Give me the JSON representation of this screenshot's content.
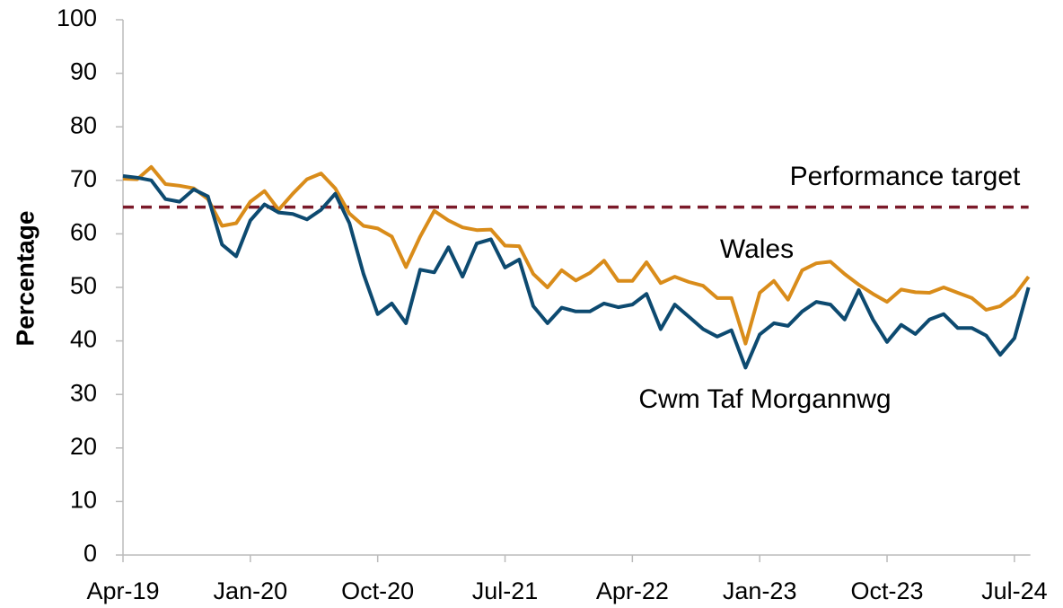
{
  "chart_data": {
    "type": "line",
    "y_label": "Percentage",
    "categories": [
      "Apr-19",
      null,
      null,
      null,
      null,
      null,
      null,
      null,
      null,
      "Jan-20",
      null,
      null,
      null,
      null,
      null,
      null,
      null,
      null,
      "Oct-20",
      null,
      null,
      null,
      null,
      null,
      null,
      null,
      null,
      "Jul-21",
      null,
      null,
      null,
      null,
      null,
      null,
      null,
      null,
      "Apr-22",
      null,
      null,
      null,
      null,
      null,
      null,
      null,
      null,
      "Jan-23",
      null,
      null,
      null,
      null,
      null,
      null,
      null,
      null,
      "Oct-23",
      null,
      null,
      null,
      null,
      null,
      null,
      null,
      null,
      "Jul-24",
      null
    ],
    "series": [
      {
        "name": "Wales",
        "color": "#d98c1a",
        "values": [
          70.3,
          70.2,
          72.5,
          69.3,
          69,
          68.5,
          66.5,
          61.5,
          62,
          66,
          68,
          64.5,
          67.5,
          70.2,
          71.3,
          68.5,
          63.8,
          61.5,
          61,
          59.5,
          53.8,
          59.5,
          64.3,
          62.5,
          61.2,
          60.7,
          60.8,
          57.8,
          57.7,
          52.5,
          50,
          53.2,
          51.3,
          52.7,
          55,
          51.2,
          51.2,
          54.7,
          50.8,
          52,
          51,
          50.3,
          48,
          48,
          39.5,
          49,
          51.2,
          47.7,
          53.2,
          54.5,
          54.8,
          52.5,
          50.5,
          48.8,
          47.3,
          49.6,
          49.1,
          49,
          50,
          49,
          48,
          45.8,
          46.5,
          48.5,
          52
        ]
      },
      {
        "name": "Cwm Taf Morgannwg",
        "color": "#0d4a70",
        "values": [
          70.8,
          70.5,
          70,
          66.5,
          66,
          68.3,
          67,
          58,
          55.8,
          62.5,
          65.5,
          64,
          63.7,
          62.7,
          64.5,
          67.5,
          62,
          52.5,
          45,
          47,
          43.3,
          53.3,
          52.8,
          57.5,
          52,
          58.2,
          59,
          53.7,
          55.2,
          46.5,
          43.3,
          46.2,
          45.5,
          45.5,
          47,
          46.3,
          46.8,
          48.8,
          42.2,
          46.8,
          44.5,
          42.2,
          40.8,
          42,
          35,
          41.2,
          43.3,
          42.8,
          45.5,
          47.3,
          46.8,
          44,
          49.5,
          44,
          39.8,
          43,
          41.3,
          44,
          45,
          42.4,
          42.4,
          41,
          37.4,
          40.5,
          50
        ]
      }
    ],
    "target": {
      "name": "Performance target",
      "value": 65,
      "color": "#7b1a2a"
    },
    "ylim": [
      0,
      100
    ],
    "yticks": [
      0,
      10,
      20,
      30,
      40,
      50,
      60,
      70,
      80,
      90,
      100
    ],
    "grid": false
  }
}
